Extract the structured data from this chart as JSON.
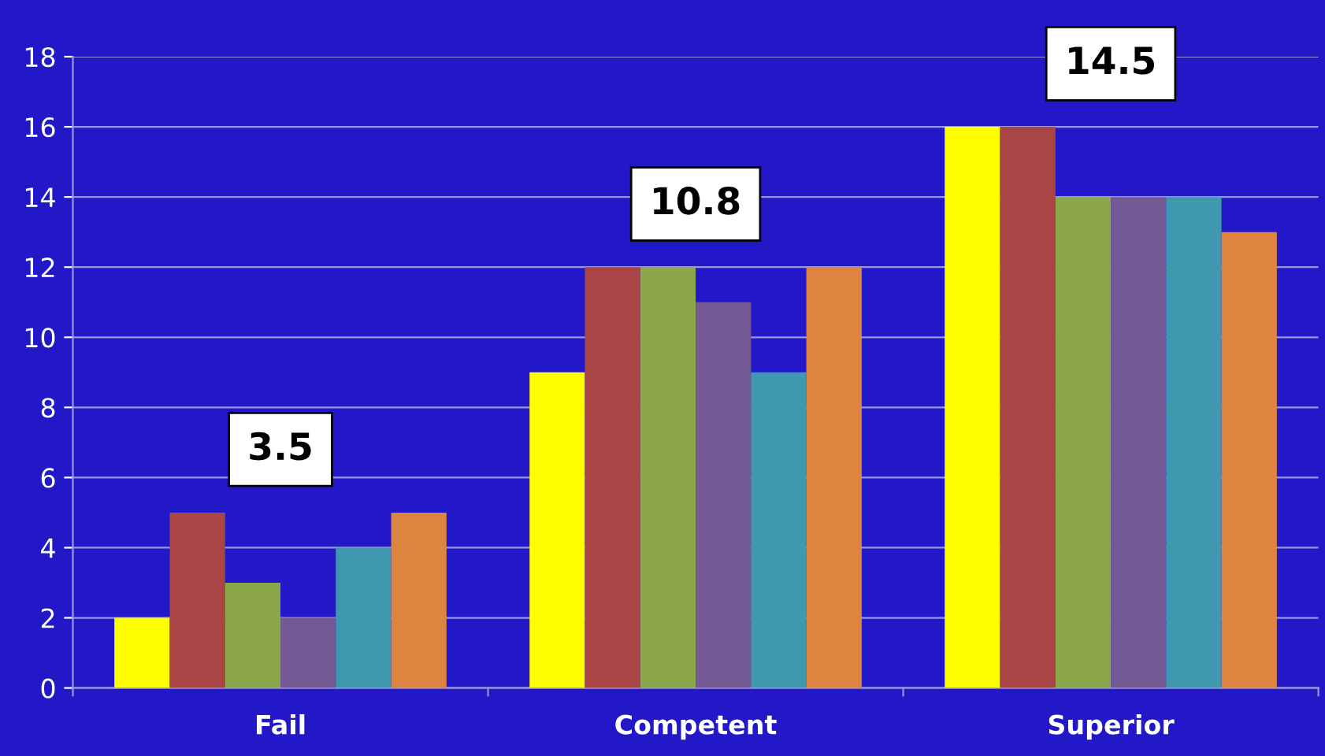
{
  "chart_data": {
    "type": "bar",
    "categories": [
      "Fail",
      "Competent",
      "Superior"
    ],
    "series": [
      {
        "color": "#ffff00",
        "values": [
          2,
          9,
          16
        ]
      },
      {
        "color": "#a94545",
        "values": [
          5,
          12,
          16
        ]
      },
      {
        "color": "#8ba64b",
        "values": [
          3,
          12,
          14
        ]
      },
      {
        "color": "#735a94",
        "values": [
          2,
          11,
          14
        ]
      },
      {
        "color": "#4097b0",
        "values": [
          4,
          9,
          14
        ]
      },
      {
        "color": "#dd8540",
        "values": [
          5,
          12,
          13
        ]
      }
    ],
    "ylim": [
      0,
      18
    ],
    "yticks": [
      0,
      2,
      4,
      6,
      8,
      10,
      12,
      14,
      16,
      18
    ],
    "grid": "y",
    "annotations": [
      "3.5",
      "10.8",
      "14.5"
    ]
  }
}
